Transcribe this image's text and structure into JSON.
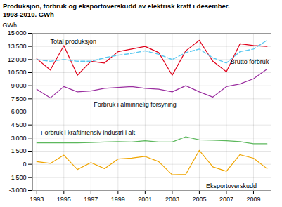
{
  "chart_data": {
    "type": "line",
    "title": "Produksjon, forbruk og eksportoverskudd av elektrisk kraft i desember.",
    "subtitle": "1993-2010. GWh",
    "ylabel": "GWh",
    "x": [
      1993,
      1994,
      1995,
      1996,
      1997,
      1998,
      1999,
      2000,
      2001,
      2002,
      2003,
      2004,
      2005,
      2006,
      2007,
      2008,
      2009,
      2010
    ],
    "series": [
      {
        "name": "Total produksjon",
        "color": "#e0001a",
        "line_style": "solid",
        "values": [
          12100,
          10800,
          13600,
          10200,
          11800,
          11600,
          12900,
          13200,
          13500,
          12800,
          10200,
          13000,
          14200,
          11800,
          10600,
          13800,
          13600,
          13500
        ]
      },
      {
        "name": "Brutto forbruk",
        "color": "#5bc8f0",
        "line_style": "dashed",
        "values": [
          12000,
          11800,
          12000,
          11800,
          11800,
          12200,
          12500,
          12700,
          13000,
          12600,
          12000,
          12800,
          13200,
          12200,
          11600,
          12900,
          13200,
          14200
        ]
      },
      {
        "name": "Forbruk i alminnelig forsyning",
        "color": "#9b2fa0",
        "line_style": "solid",
        "values": [
          8600,
          7600,
          8900,
          8300,
          8400,
          8700,
          8800,
          8900,
          8700,
          8600,
          8300,
          9000,
          8300,
          7700,
          8900,
          9200,
          9800,
          10900
        ]
      },
      {
        "name": "Forbruk i kraftintensiv industri i alt",
        "color": "#5cb85c",
        "line_style": "solid",
        "values": [
          2450,
          2450,
          2450,
          2450,
          2500,
          2550,
          2600,
          2550,
          2700,
          2550,
          2550,
          3150,
          2800,
          2750,
          2700,
          2600,
          2350,
          2350
        ]
      },
      {
        "name": "Eksportoverskudd",
        "color": "#f0a500",
        "line_style": "solid",
        "values": [
          300,
          100,
          1050,
          -600,
          200,
          -500,
          600,
          700,
          900,
          300,
          -1200,
          -1150,
          1600,
          -300,
          -800,
          1100,
          700,
          -500
        ]
      }
    ],
    "annotations": [
      {
        "text": "Total produksjon",
        "x": 1994.0,
        "y": 13800
      },
      {
        "text": "Brutto forbruk",
        "x": 2007.3,
        "y": 11700
      },
      {
        "text": "Forbruk i alminnelig forsyning",
        "x": 1997.2,
        "y": 7150
      },
      {
        "text": "Forbruk i kraftintensiv industri i alt",
        "x": 1993.3,
        "y": 3350
      },
      {
        "text": "Eksportoverskudd",
        "x": 2005.5,
        "y": -2200
      }
    ],
    "xlim": [
      1992.7,
      2010.3
    ],
    "xticks": [
      1993,
      1995,
      1997,
      1999,
      2001,
      2003,
      2005,
      2007,
      2009
    ],
    "ylim": [
      -3000,
      15000
    ],
    "yticks": [
      {
        "value": -3000,
        "label": "-3 000"
      },
      {
        "value": -1500,
        "label": "-1 500"
      },
      0,
      {
        "value": 1500,
        "label": "1 500"
      },
      {
        "value": 3000,
        "label": "3 000"
      },
      {
        "value": 4500,
        "label": "4 500"
      },
      {
        "value": 6000,
        "label": "6 000"
      },
      {
        "value": 7500,
        "label": "7 500"
      },
      {
        "value": 9000,
        "label": "9 000"
      },
      {
        "value": 10500,
        "label": "10 500"
      },
      {
        "value": 12000,
        "label": "12 000"
      },
      {
        "value": 13500,
        "label": "13 500"
      },
      {
        "value": 15000,
        "label": "15 000"
      }
    ],
    "grid": true
  }
}
